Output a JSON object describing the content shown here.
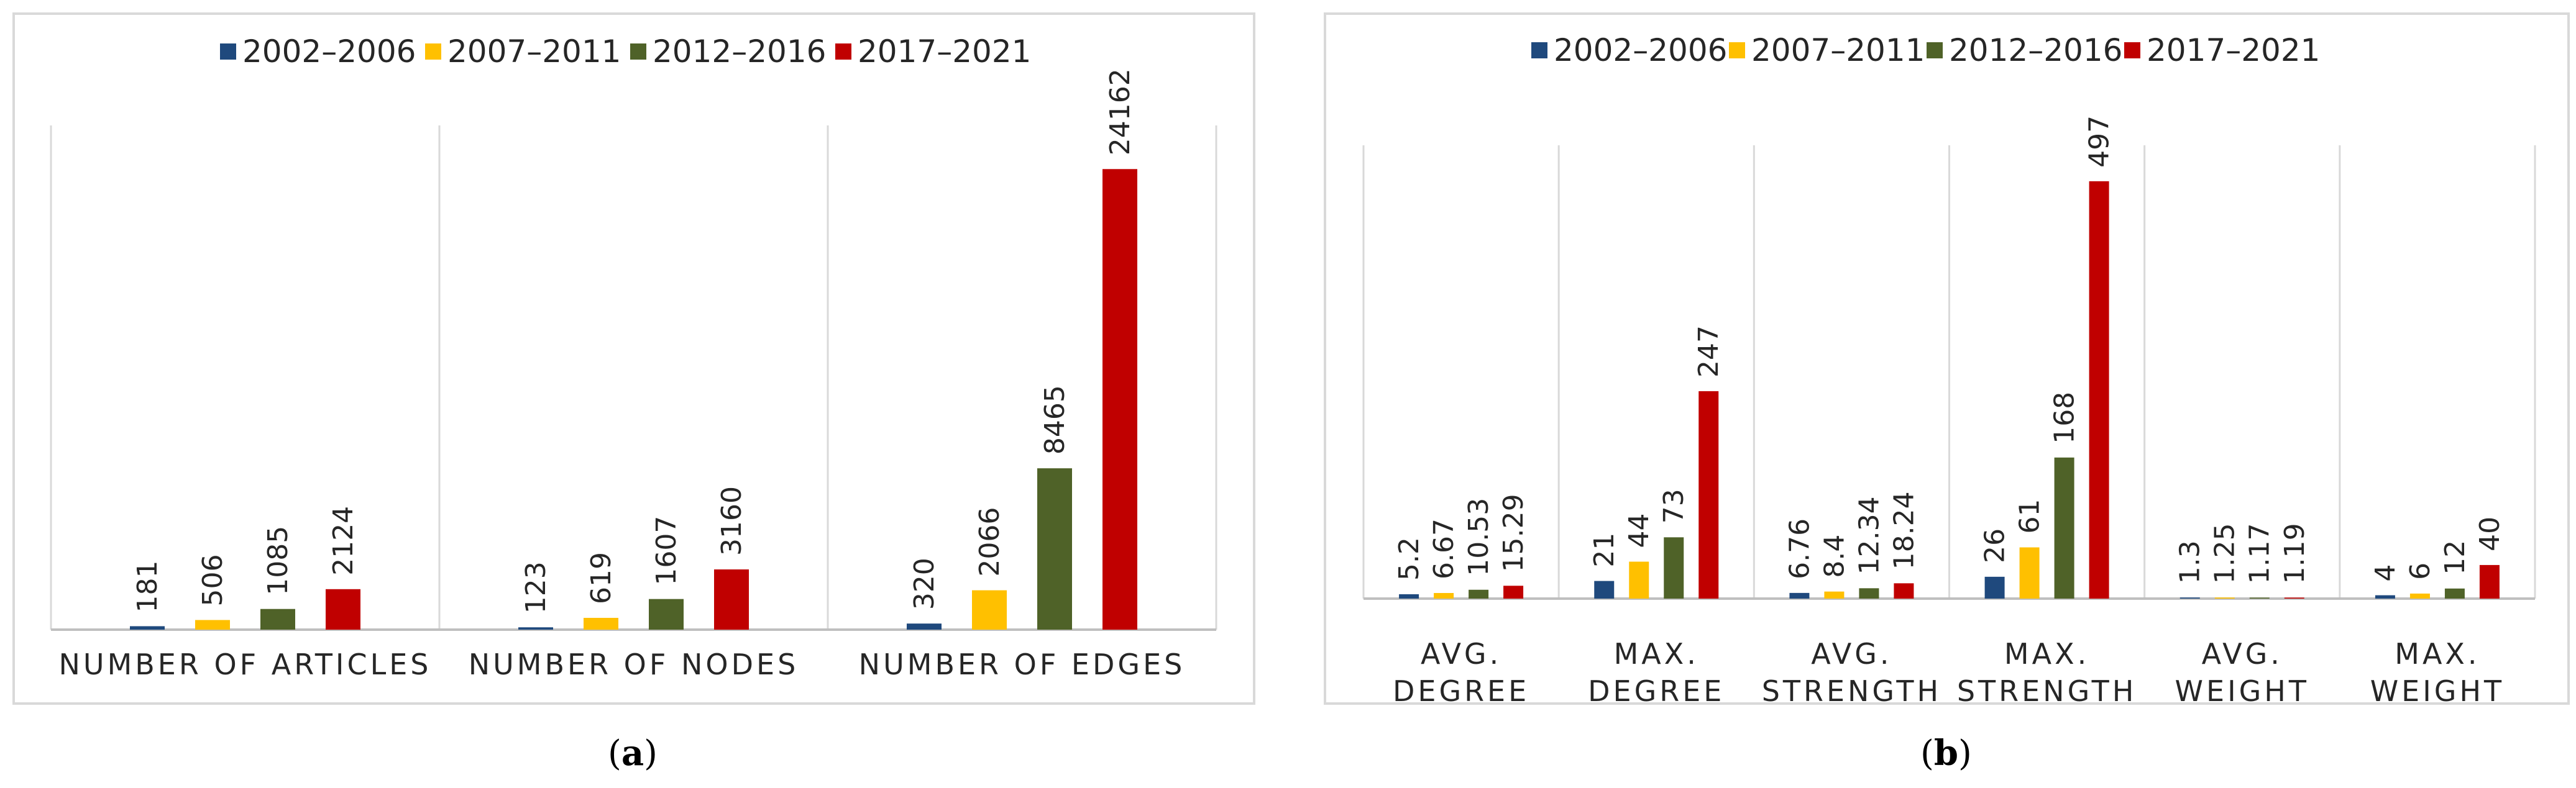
{
  "series_colors": [
    "#1f497d",
    "#ffc000",
    "#4f6228",
    "#c00000"
  ],
  "chart_data": [
    {
      "type": "bar",
      "panel": "a",
      "series_names": [
        "2002–2006",
        "2007–2011",
        "2012–2016",
        "2017–2021"
      ],
      "categories": [
        [
          "NUMBER OF ARTICLES"
        ],
        [
          "NUMBER OF NODES"
        ],
        [
          "NUMBER OF EDGES"
        ]
      ],
      "series": [
        {
          "name": "2002–2006",
          "values": [
            181,
            123,
            320
          ],
          "labels": [
            "181",
            "123",
            "320"
          ]
        },
        {
          "name": "2007–2011",
          "values": [
            506,
            619,
            2066
          ],
          "labels": [
            "506",
            "619",
            "2066"
          ]
        },
        {
          "name": "2012–2016",
          "values": [
            1085,
            1607,
            8465
          ],
          "labels": [
            "1085",
            "1607",
            "8465"
          ]
        },
        {
          "name": "2017–2021",
          "values": [
            2124,
            3160,
            24162
          ],
          "labels": [
            "2124",
            "3160",
            "24162"
          ]
        }
      ],
      "ylim": [
        0,
        25800
      ],
      "legend_position": "top",
      "grid": false
    },
    {
      "type": "bar",
      "panel": "b",
      "series_names": [
        "2002–2006",
        "2007–2011",
        "2012–2016",
        "2017–2021"
      ],
      "categories": [
        [
          "AVG.",
          "DEGREE"
        ],
        [
          "MAX.",
          "DEGREE"
        ],
        [
          "AVG.",
          "STRENGTH"
        ],
        [
          "MAX.",
          "STRENGTH"
        ],
        [
          "AVG.",
          "WEIGHT"
        ],
        [
          "MAX.",
          "WEIGHT"
        ]
      ],
      "series": [
        {
          "name": "2002–2006",
          "values": [
            5.2,
            21,
            6.76,
            26,
            1.3,
            4
          ],
          "labels": [
            "5.2",
            "21",
            "6.76",
            "26",
            "1.3",
            "4"
          ]
        },
        {
          "name": "2007–2011",
          "values": [
            6.67,
            44,
            8.4,
            61,
            1.25,
            6
          ],
          "labels": [
            "6.67",
            "44",
            "8.4",
            "61",
            "1.25",
            "6"
          ]
        },
        {
          "name": "2012–2016",
          "values": [
            10.53,
            73,
            12.34,
            168,
            1.17,
            12
          ],
          "labels": [
            "10.53",
            "73",
            "12.34",
            "168",
            "1.17",
            "12"
          ]
        },
        {
          "name": "2017–2021",
          "values": [
            15.29,
            247,
            18.24,
            497,
            1.19,
            40
          ],
          "labels": [
            "15.29",
            "247",
            "18.24",
            "497",
            "1.19",
            "40"
          ]
        }
      ],
      "ylim": [
        0,
        525
      ],
      "legend_position": "top",
      "grid": false
    }
  ],
  "captions": {
    "a": "a",
    "b": "b"
  }
}
